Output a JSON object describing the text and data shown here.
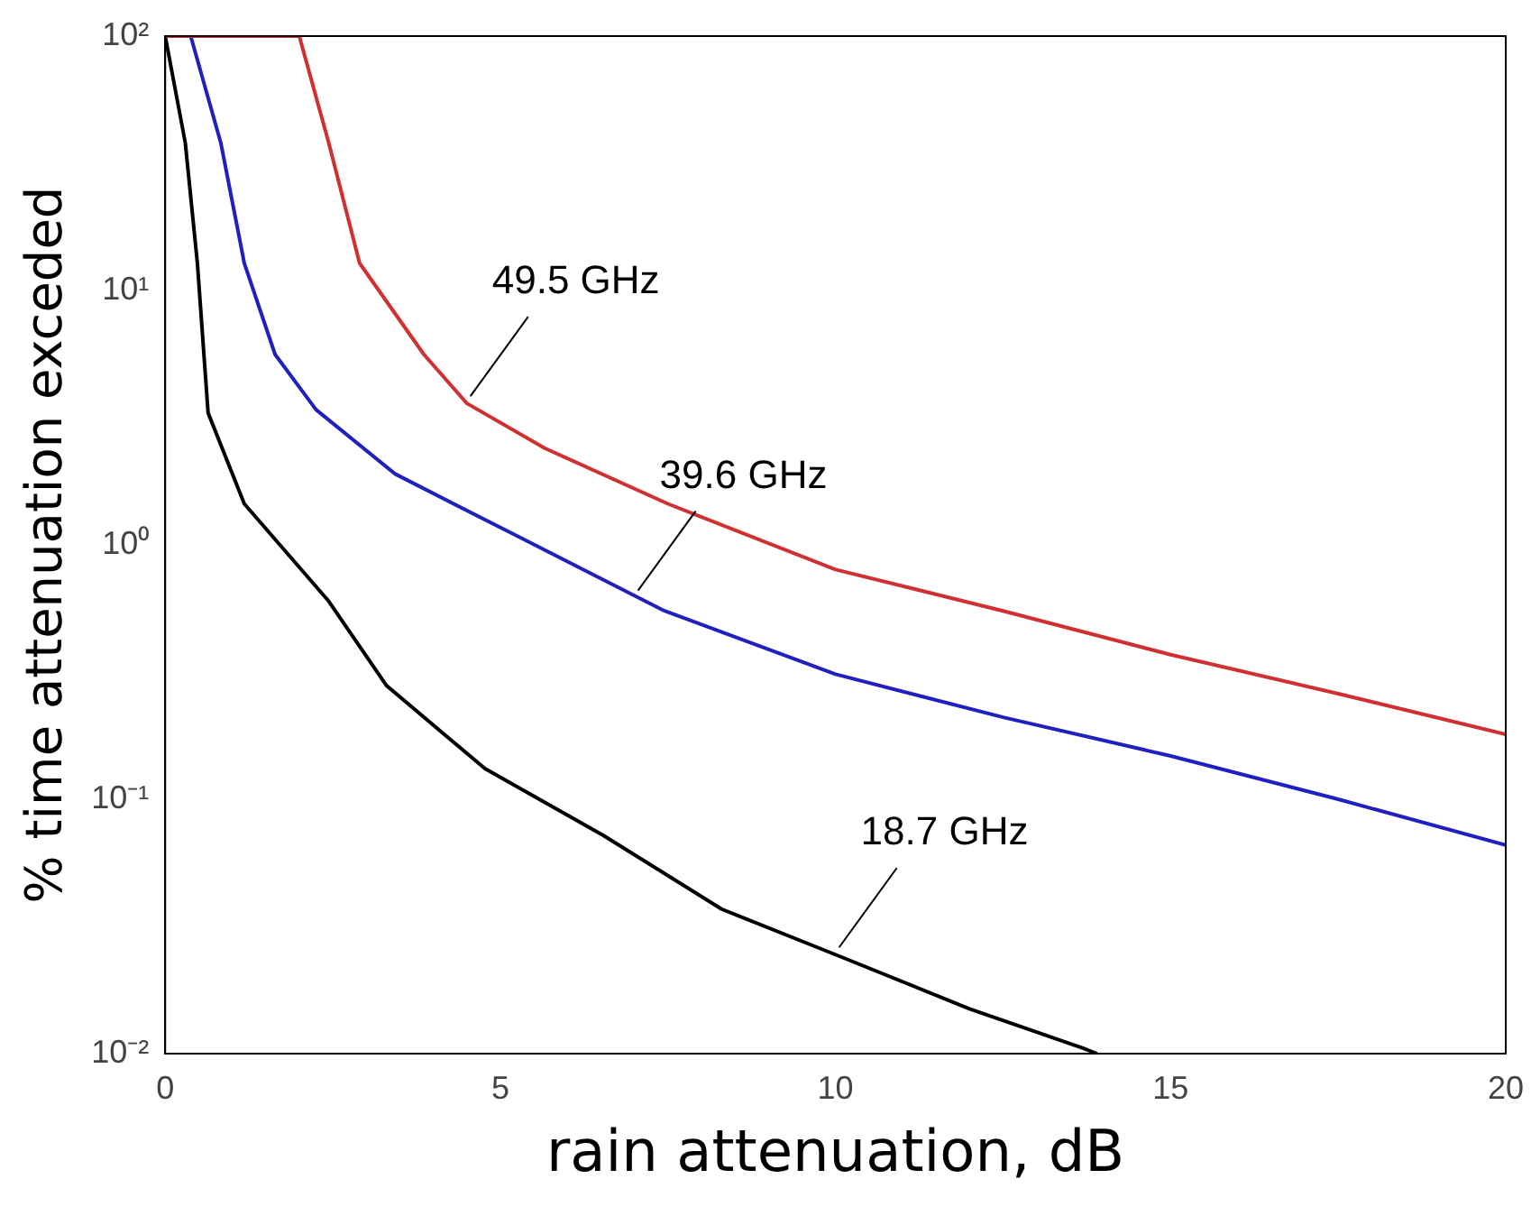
{
  "chart_data": {
    "type": "line",
    "xlabel": "rain attenuation, dB",
    "ylabel": "% time attenuation exceded",
    "log": "y",
    "xlim": [
      0,
      20
    ],
    "xticks": [
      0,
      5,
      10,
      15,
      20
    ],
    "ylim": [
      0.01,
      100
    ],
    "yticks": [
      {
        "value": 100,
        "label": "10²"
      },
      {
        "value": 10,
        "label": "10¹"
      },
      {
        "value": 1,
        "label": "10⁰"
      },
      {
        "value": 0.1,
        "label": "10⁻¹"
      },
      {
        "value": 0.01,
        "label": "10⁻²"
      }
    ],
    "grid": false,
    "legend": false,
    "marker": "none",
    "line_style": "solid",
    "series": [
      {
        "color": "#d03030",
        "x": [
          0,
          1.5,
          2,
          2.44,
          2.9,
          3.86,
          4.5,
          5.66,
          7.5,
          10,
          12.5,
          15,
          17.5,
          20
        ],
        "values": [
          100,
          100,
          100,
          38,
          12.8,
          5.6,
          3.6,
          2.4,
          1.45,
          0.8,
          0.55,
          0.37,
          0.26,
          0.18
        ]
      },
      {
        "color": "#2020c0",
        "x": [
          0,
          0.38,
          0.83,
          1.18,
          1.64,
          2.25,
          3.43,
          5.2,
          7.45,
          10,
          12.5,
          15,
          17.5,
          20
        ],
        "values": [
          100,
          100,
          38,
          12.8,
          5.6,
          3.4,
          1.9,
          1.1,
          0.55,
          0.31,
          0.21,
          0.148,
          0.1,
          0.066
        ]
      },
      {
        "color": "#000000",
        "x": [
          0,
          0.3,
          0.48,
          0.64,
          1.18,
          2.44,
          3.3,
          4.77,
          6.54,
          8.3,
          10,
          12,
          13.7,
          13.9
        ],
        "values": [
          100,
          38,
          12.8,
          3.3,
          1.45,
          0.6,
          0.28,
          0.132,
          0.072,
          0.037,
          0.0245,
          0.015,
          0.0105,
          0.01
        ]
      }
    ],
    "annotations": [
      {
        "text": "49.5 GHz",
        "x": 4.5,
        "y": 3.6
      },
      {
        "text": "39.6 GHz",
        "x": 7,
        "y": 0.62
      },
      {
        "text": "18.7 GHz",
        "x": 10,
        "y": 0.0245
      }
    ]
  }
}
